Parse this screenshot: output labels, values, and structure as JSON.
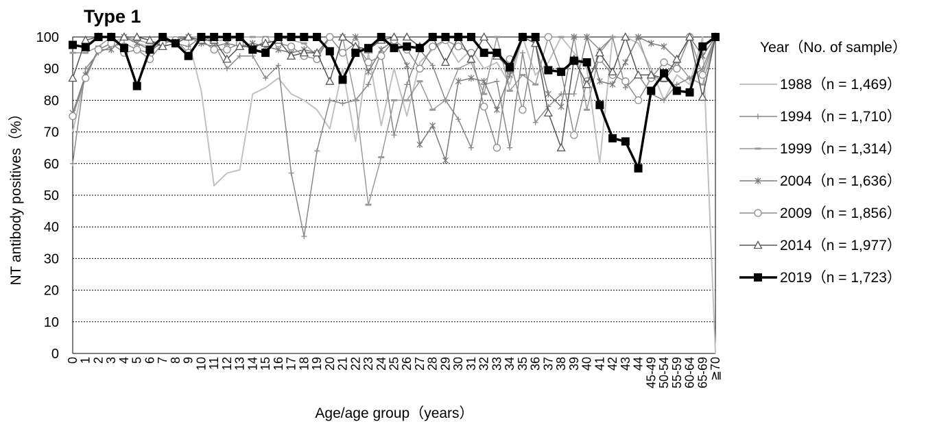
{
  "chart_data": {
    "type": "line",
    "title": "Type 1",
    "xlabel": "Age/age group（years）",
    "ylabel": "NT antibody positives（%）",
    "ylim": [
      0,
      100
    ],
    "yticks": [
      0,
      10,
      20,
      30,
      40,
      50,
      60,
      70,
      80,
      90,
      100
    ],
    "grid": true,
    "legend_title": "Year（No. of sample）",
    "legend_position": "right",
    "categories": [
      "0",
      "1",
      "2",
      "3",
      "4",
      "5",
      "6",
      "7",
      "8",
      "9",
      "10",
      "11",
      "12",
      "13",
      "14",
      "15",
      "16",
      "17",
      "18",
      "19",
      "20",
      "21",
      "22",
      "23",
      "24",
      "25",
      "26",
      "27",
      "28",
      "29",
      "30",
      "31",
      "32",
      "33",
      "34",
      "35",
      "36",
      "37",
      "38",
      "39",
      "40",
      "41",
      "42",
      "43",
      "44",
      "45-49",
      "50-54",
      "55-59",
      "60-64",
      "65-69",
      "≧70"
    ],
    "series": [
      {
        "name": "1988（n = 1,469）",
        "color": "#c0c0c0",
        "width": 2,
        "marker": "none",
        "values": [
          70,
          88,
          96,
          98,
          100,
          98,
          97,
          100,
          100,
          99,
          83,
          53,
          57,
          58,
          82,
          84,
          87,
          82,
          80,
          77,
          71,
          90,
          67,
          95,
          72,
          90,
          75,
          92,
          96,
          99,
          92,
          96,
          90,
          92,
          85,
          100,
          88,
          92,
          100,
          95,
          90,
          60,
          100,
          100,
          98,
          90,
          80,
          88,
          85,
          100,
          0
        ]
      },
      {
        "name": "1994（n = 1,710）",
        "color": "#888888",
        "width": 1.5,
        "marker": "plus",
        "values": [
          60,
          90,
          95,
          97,
          98,
          96,
          95,
          99,
          98,
          97,
          100,
          98,
          90,
          94,
          94,
          87,
          91,
          57,
          37,
          64,
          80,
          79,
          80,
          85,
          95,
          69,
          85,
          96,
          91,
          80,
          74,
          65,
          85,
          86,
          65,
          95,
          73,
          78,
          82,
          82,
          100,
          96,
          100,
          84,
          88,
          82,
          80,
          85,
          87,
          90,
          100
        ]
      },
      {
        "name": "1999（n = 1,314）",
        "color": "#999999",
        "width": 1.5,
        "marker": "dash",
        "values": [
          95,
          95,
          97,
          100,
          100,
          99,
          98,
          99,
          99,
          100,
          100,
          99,
          99,
          100,
          100,
          100,
          100,
          99,
          98,
          94,
          100,
          100,
          80,
          47,
          62,
          80,
          80,
          86,
          77,
          80,
          90,
          92,
          82,
          100,
          83,
          88,
          85,
          100,
          100,
          100,
          77,
          95,
          100,
          100,
          100,
          88,
          86,
          92,
          87,
          85,
          100
        ]
      },
      {
        "name": "2004（n = 1,636）",
        "color": "#7a7a7a",
        "width": 1.5,
        "marker": "star",
        "values": [
          76,
          88,
          96,
          96,
          100,
          98,
          96,
          98,
          99,
          100,
          98,
          97,
          98,
          97,
          98,
          97,
          96,
          95,
          96,
          95,
          100,
          100,
          100,
          89,
          96,
          99,
          91,
          66,
          72,
          61,
          86,
          87,
          86,
          77,
          88,
          100,
          98,
          82,
          78,
          100,
          100,
          86,
          85,
          92,
          100,
          98,
          97,
          93,
          100,
          94,
          100
        ]
      },
      {
        "name": "2009（n = 1,856）",
        "color": "#8c8c8c",
        "width": 1.5,
        "marker": "circle",
        "values": [
          75,
          87,
          96,
          98,
          95,
          96,
          93,
          98,
          99,
          95,
          99,
          96,
          96,
          98,
          96,
          99,
          98,
          97,
          94,
          93,
          100,
          95,
          98,
          92,
          94,
          99,
          96,
          90,
          97,
          99,
          97,
          95,
          78,
          65,
          93,
          77,
          100,
          100,
          89,
          69,
          86,
          93,
          88,
          86,
          80,
          87,
          92,
          90,
          100,
          88,
          100
        ]
      },
      {
        "name": "2014（n = 1,977）",
        "color": "#555555",
        "width": 1.5,
        "marker": "triangle",
        "values": [
          87,
          99,
          100,
          100,
          100,
          100,
          99,
          97,
          98,
          100,
          99,
          99,
          93,
          97,
          97,
          98,
          99,
          94,
          95,
          95,
          86,
          100,
          97,
          96,
          99,
          100,
          100,
          97,
          100,
          92,
          100,
          93,
          100,
          94,
          90,
          100,
          98,
          76,
          65,
          93,
          85,
          95,
          89,
          100,
          88,
          88,
          87,
          93,
          100,
          81,
          100
        ]
      },
      {
        "name": "2019（n = 1,723）",
        "color": "#000000",
        "width": 3.5,
        "marker": "square",
        "values": [
          97.5,
          96.8,
          100,
          100,
          96.5,
          84.5,
          96,
          100,
          98,
          94,
          100,
          100,
          100,
          100,
          96,
          95,
          100,
          100,
          100,
          100,
          95.5,
          86.5,
          95,
          96.5,
          100,
          96.5,
          97,
          96.5,
          100,
          100,
          100,
          100,
          95,
          95,
          90.5,
          100,
          100,
          89.5,
          89,
          92.5,
          92,
          78.5,
          68,
          67,
          58.5,
          83,
          88.5,
          83,
          82.5,
          97,
          100
        ]
      }
    ]
  }
}
